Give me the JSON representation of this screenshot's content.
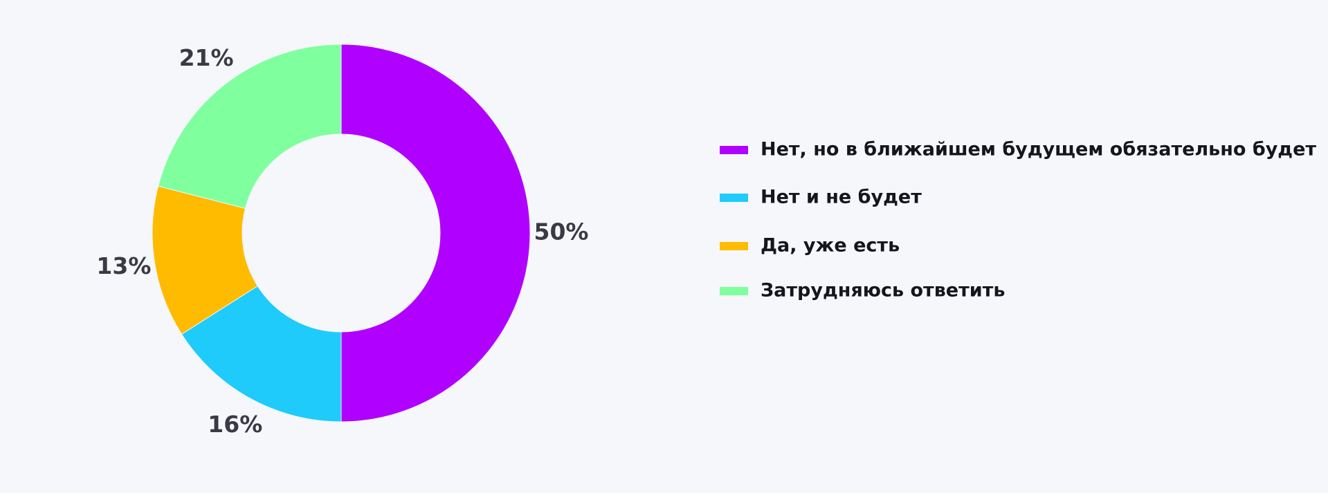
{
  "chart_data": {
    "type": "donut",
    "categories": [
      "Нет, но в ближайшем будущем обязательно будет",
      "Нет и не будет",
      "Да, уже есть",
      "Затрудняюсь ответить"
    ],
    "values": [
      50,
      16,
      13,
      21
    ],
    "value_labels": [
      "50%",
      "16%",
      "13%",
      "21%"
    ],
    "colors": [
      "#b000ff",
      "#1ecbfb",
      "#ffbb00",
      "#80ff9f"
    ],
    "legend": "right"
  }
}
